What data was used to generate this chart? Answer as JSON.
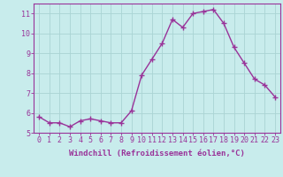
{
  "x": [
    0,
    1,
    2,
    3,
    4,
    5,
    6,
    7,
    8,
    9,
    10,
    11,
    12,
    13,
    14,
    15,
    16,
    17,
    18,
    19,
    20,
    21,
    22,
    23
  ],
  "y": [
    5.8,
    5.5,
    5.5,
    5.3,
    5.6,
    5.7,
    5.6,
    5.5,
    5.5,
    6.1,
    7.9,
    8.7,
    9.5,
    10.7,
    10.3,
    11.0,
    11.1,
    11.2,
    10.5,
    9.3,
    8.5,
    7.7,
    7.4,
    6.8
  ],
  "line_color": "#993399",
  "marker": "+",
  "marker_size": 4,
  "line_width": 1.0,
  "bg_color": "#c8ecec",
  "grid_color": "#aad4d4",
  "xlabel": "Windchill (Refroidissement éolien,°C)",
  "xlabel_color": "#993399",
  "tick_color": "#993399",
  "ylim": [
    5,
    11.5
  ],
  "xlim": [
    -0.5,
    23.5
  ],
  "yticks": [
    5,
    6,
    7,
    8,
    9,
    10,
    11
  ],
  "xticks": [
    0,
    1,
    2,
    3,
    4,
    5,
    6,
    7,
    8,
    9,
    10,
    11,
    12,
    13,
    14,
    15,
    16,
    17,
    18,
    19,
    20,
    21,
    22,
    23
  ],
  "spine_color": "#993399",
  "label_fontsize": 6.5,
  "tick_fontsize": 6.0
}
